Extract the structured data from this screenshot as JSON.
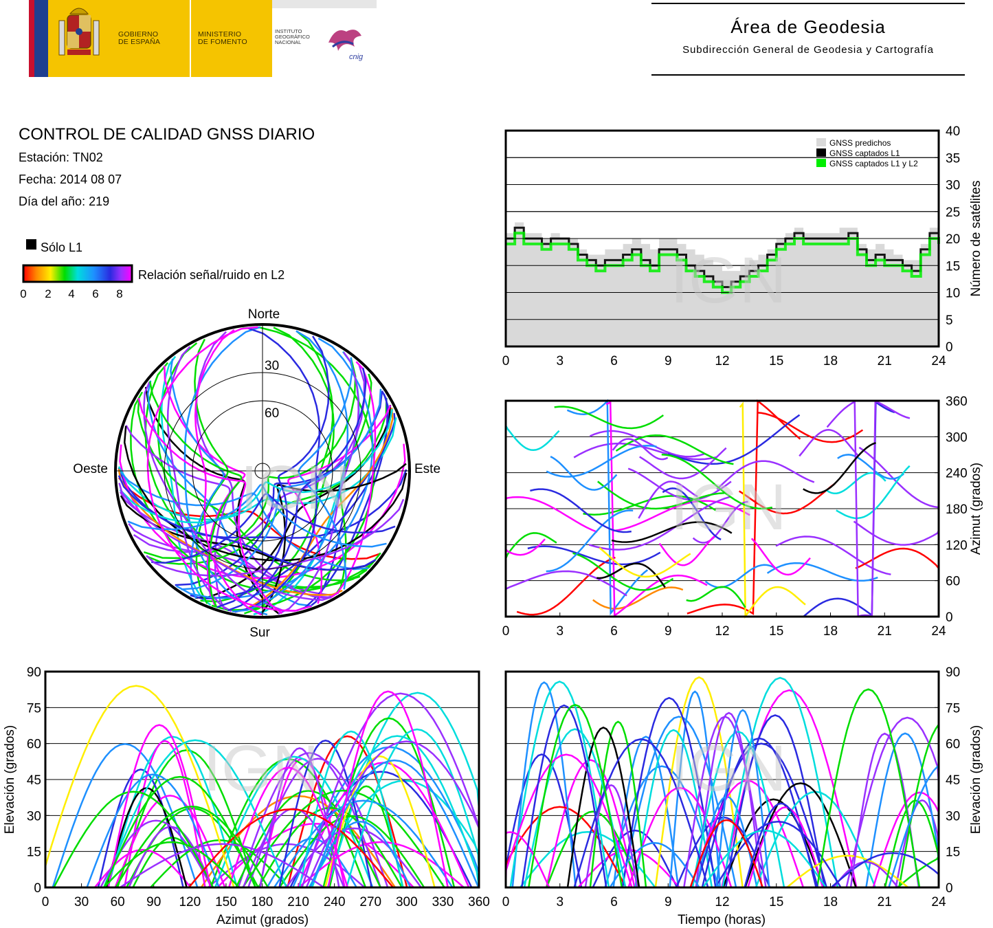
{
  "header": {
    "gobierno": [
      "GOBIERNO",
      "DE ESPAÑA"
    ],
    "ministerio": [
      "MINISTERIO",
      "DE FOMENTO"
    ],
    "instituto": [
      "INSTITUTO",
      "GEOGRÁFICO",
      "NACIONAL"
    ],
    "cnig_logo": "cnig",
    "area_title": "Área de Geodesia",
    "area_subtitle": "Subdirección General de Geodesia y Cartografía"
  },
  "info": {
    "title": "CONTROL DE CALIDAD GNSS DIARIO",
    "station": "Estación: TN02",
    "date": "Fecha: 2014 08 07",
    "doy": "Día del año: 219",
    "legend_l1": "Sólo L1",
    "legend_snr": "Relación señal/ruido en L2",
    "colorbar_ticks": [
      "0",
      "2",
      "4",
      "6",
      "8"
    ]
  },
  "watermark": "IGN",
  "colors": {
    "predicted": "#d9d9d9",
    "l1_only": "#000000",
    "l1_l2": "#00ee00",
    "snr_scale": [
      "#ff0000",
      "#ff8800",
      "#ffee00",
      "#00dd00",
      "#00dddd",
      "#1e90ff",
      "#2a2ae0",
      "#9a30ff",
      "#ff00ff"
    ]
  },
  "chart_data": [
    {
      "id": "satellites",
      "type": "area",
      "ylabel": "Número de satélites",
      "xlim": [
        0,
        24
      ],
      "ylim": [
        0,
        40
      ],
      "x_ticks": [
        "0",
        "3",
        "6",
        "9",
        "12",
        "15",
        "18",
        "21",
        "24"
      ],
      "y_ticks": [
        "0",
        "5",
        "10",
        "15",
        "20",
        "25",
        "30",
        "35",
        "40"
      ],
      "grid": true,
      "legend_position": "top-right",
      "legend": [
        "GNSS predichos",
        "GNSS captados L1",
        "GNSS captados L1 y L2"
      ],
      "x": [
        0,
        0.5,
        1,
        1.5,
        2,
        2.5,
        3,
        3.5,
        4,
        4.5,
        5,
        5.5,
        6,
        6.5,
        7,
        7.5,
        8,
        8.5,
        9,
        9.5,
        10,
        10.5,
        11,
        11.5,
        12,
        12.5,
        13,
        13.5,
        14,
        14.5,
        15,
        15.5,
        16,
        16.5,
        17,
        17.5,
        18,
        18.5,
        19,
        19.5,
        20,
        20.5,
        21,
        21.5,
        22,
        22.5,
        23,
        23.5,
        24
      ],
      "series": [
        {
          "name": "GNSS predichos",
          "values": [
            21,
            23,
            21,
            21,
            20,
            21,
            20,
            20,
            18,
            17,
            17,
            18,
            18,
            19,
            20,
            19,
            18,
            20,
            20,
            19,
            18,
            17,
            16,
            15,
            14,
            14,
            15,
            16,
            17,
            18,
            20,
            21,
            22,
            21,
            21,
            21,
            21,
            22,
            22,
            19,
            18,
            19,
            18,
            17,
            16,
            16,
            19,
            22,
            21
          ]
        },
        {
          "name": "GNSS captados L1",
          "values": [
            20,
            22,
            20,
            20,
            19,
            20,
            20,
            19,
            17,
            16,
            15,
            16,
            16,
            17,
            18,
            16,
            15,
            18,
            18,
            17,
            15,
            14,
            13,
            12,
            11,
            12,
            13,
            14,
            15,
            17,
            19,
            20,
            21,
            20,
            20,
            20,
            20,
            20,
            21,
            18,
            16,
            17,
            16,
            16,
            15,
            14,
            18,
            21,
            20
          ]
        },
        {
          "name": "GNSS captados L1 y L2",
          "values": [
            19,
            21,
            19,
            19,
            18,
            19,
            19,
            18,
            16,
            15,
            14,
            15,
            15,
            16,
            17,
            15,
            14,
            17,
            17,
            16,
            14,
            13,
            12,
            11,
            10,
            11,
            12,
            13,
            14,
            16,
            18,
            19,
            20,
            19,
            19,
            19,
            19,
            19,
            20,
            17,
            15,
            16,
            15,
            15,
            14,
            13,
            17,
            20,
            19
          ]
        }
      ]
    },
    {
      "id": "skyplot",
      "type": "scatter",
      "subtype": "polar",
      "labels": {
        "north": "Norte",
        "south": "Sur",
        "west": "Oeste",
        "east": "Este"
      },
      "rings": [
        "30",
        "60"
      ],
      "azimuth_range": [
        35,
        325
      ],
      "elevation_range": [
        0,
        88
      ]
    },
    {
      "id": "azimuth_time",
      "type": "scatter",
      "ylabel": "Azimut (grados)",
      "xlim": [
        0,
        24
      ],
      "ylim": [
        0,
        360
      ],
      "x_ticks": [
        "0",
        "3",
        "6",
        "9",
        "12",
        "15",
        "18",
        "21",
        "24"
      ],
      "y_ticks": [
        "0",
        "60",
        "120",
        "180",
        "240",
        "300",
        "360"
      ],
      "grid": true
    },
    {
      "id": "elevation_azimuth",
      "type": "scatter",
      "xlabel": "Azimut (grados)",
      "ylabel": "Elevación (grados)",
      "xlim": [
        0,
        360
      ],
      "ylim": [
        0,
        90
      ],
      "x_ticks": [
        "0",
        "30",
        "60",
        "90",
        "120",
        "150",
        "180",
        "210",
        "240",
        "270",
        "300",
        "330",
        "360"
      ],
      "y_ticks": [
        "0",
        "15",
        "30",
        "45",
        "60",
        "75",
        "90"
      ],
      "grid": true
    },
    {
      "id": "elevation_time",
      "type": "scatter",
      "xlabel": "Tiempo (horas)",
      "ylabel": "Elevación (grados)",
      "xlim": [
        0,
        24
      ],
      "ylim": [
        0,
        90
      ],
      "x_ticks": [
        "0",
        "3",
        "6",
        "9",
        "12",
        "15",
        "18",
        "21",
        "24"
      ],
      "y_ticks": [
        "0",
        "15",
        "30",
        "45",
        "60",
        "75",
        "90"
      ],
      "grid": true
    }
  ]
}
